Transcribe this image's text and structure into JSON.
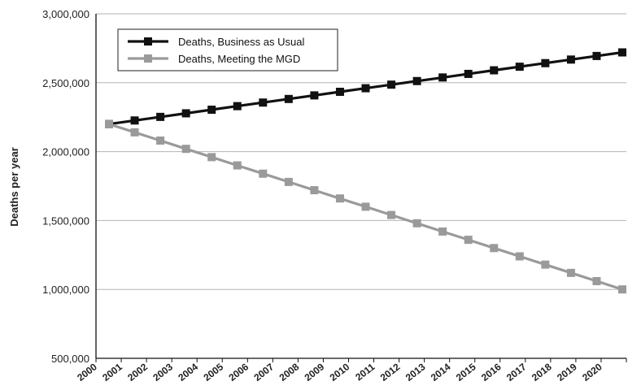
{
  "chart_data": {
    "type": "line",
    "title": "",
    "xlabel": "",
    "ylabel": "Deaths per year",
    "ylim": [
      500000,
      3000000
    ],
    "yticks": [
      "500,000",
      "1,000,000",
      "1,500,000",
      "2,000,000",
      "2,500,000",
      "3,000,000"
    ],
    "ytick_values": [
      500000,
      1000000,
      1500000,
      2000000,
      2500000,
      3000000
    ],
    "xtick_labels": [
      "2000",
      "2001",
      "2002",
      "2003",
      "2004",
      "2005",
      "2006",
      "2007",
      "2008",
      "2009",
      "2010",
      "2011",
      "2012",
      "2013",
      "2014",
      "2015",
      "2016",
      "2017",
      "2018",
      "2019",
      "2020"
    ],
    "grid": "horizontal",
    "legend_position": "top-left",
    "x": [
      2000,
      2001,
      2002,
      2003,
      2004,
      2005,
      2006,
      2007,
      2008,
      2009,
      2010,
      2011,
      2012,
      2013,
      2014,
      2015,
      2016,
      2017,
      2018,
      2019,
      2020
    ],
    "series": [
      {
        "name": "Deaths, Business as Usual",
        "color": "#111111",
        "values": [
          2200000,
          2226000,
          2252000,
          2278000,
          2304000,
          2330000,
          2356000,
          2382000,
          2408000,
          2434000,
          2460000,
          2486000,
          2512000,
          2538000,
          2564000,
          2590000,
          2616000,
          2642000,
          2668000,
          2694000,
          2720000
        ]
      },
      {
        "name": "Deaths, Meeting the MGD",
        "color": "#9a9a9a",
        "values": [
          2200000,
          2140000,
          2080000,
          2020000,
          1960000,
          1900000,
          1840000,
          1780000,
          1720000,
          1660000,
          1600000,
          1540000,
          1480000,
          1420000,
          1360000,
          1300000,
          1240000,
          1180000,
          1120000,
          1060000,
          1000000
        ]
      }
    ]
  }
}
